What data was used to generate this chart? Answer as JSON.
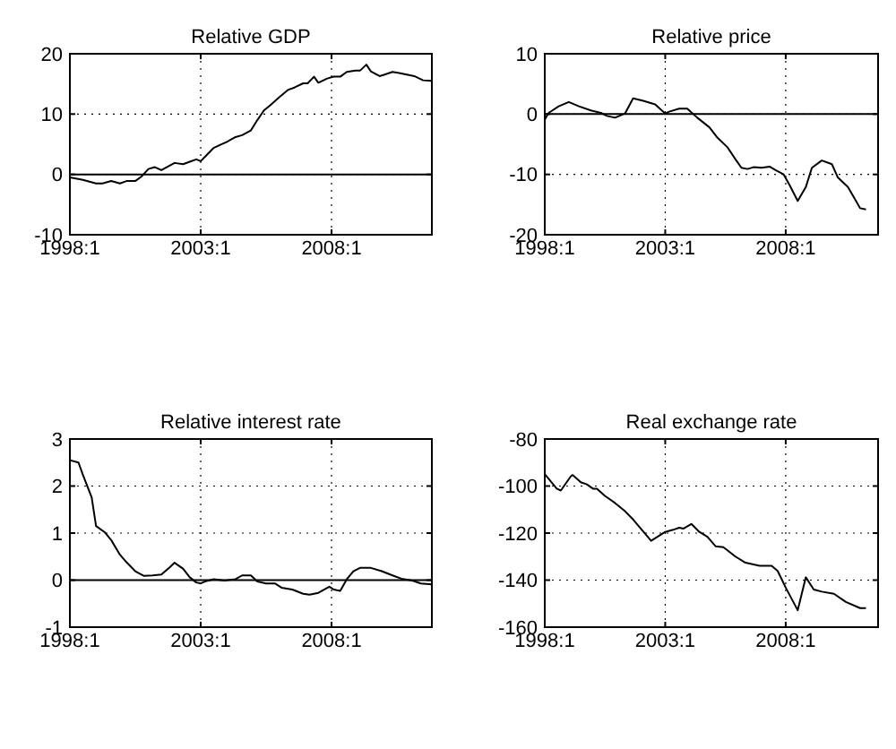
{
  "chart_data": [
    {
      "type": "line",
      "title": "Relative GDP",
      "xlim": [
        "1998-01",
        "2011-11"
      ],
      "ylim": [
        -10,
        20
      ],
      "xticks": [
        {
          "value": "1998-01",
          "label": "1998:1"
        },
        {
          "value": "2003-01",
          "label": "2003:1"
        },
        {
          "value": "2008-01",
          "label": "2008:1"
        }
      ],
      "yticks": [
        -10,
        0,
        10,
        20
      ],
      "grid": true,
      "ref_lines": [
        {
          "axis": "y",
          "value": 0,
          "color": "#000000"
        }
      ],
      "series": [
        {
          "color": "#000000",
          "x": [
            "1998-01",
            "1998-07",
            "1999-01",
            "1999-04",
            "1999-08",
            "1999-12",
            "2000-03",
            "2000-07",
            "2000-10",
            "2001-01",
            "2001-04",
            "2001-07",
            "2001-10",
            "2002-01",
            "2002-05",
            "2002-08",
            "2002-11",
            "2003-01",
            "2003-04",
            "2003-07",
            "2003-10",
            "2004-01",
            "2004-05",
            "2004-08",
            "2004-12",
            "2005-03",
            "2005-06",
            "2005-09",
            "2006-01",
            "2006-05",
            "2006-08",
            "2006-12",
            "2007-02",
            "2007-05",
            "2007-07",
            "2007-11",
            "2008-02",
            "2008-05",
            "2008-08",
            "2008-12",
            "2009-02",
            "2009-05",
            "2009-07",
            "2009-11",
            "2010-01",
            "2010-05",
            "2010-08",
            "2010-12",
            "2011-03",
            "2011-07",
            "2011-11"
          ],
          "values": [
            -0.5,
            -0.9,
            -1.5,
            -1.5,
            -1.1,
            -1.5,
            -1.1,
            -1.1,
            -0.3,
            0.9,
            1.2,
            0.7,
            1.3,
            1.9,
            1.7,
            2.1,
            2.5,
            2.2,
            3.3,
            4.4,
            4.9,
            5.4,
            6.2,
            6.5,
            7.3,
            9.0,
            10.6,
            11.5,
            12.8,
            14.0,
            14.4,
            15.1,
            15.1,
            16.2,
            15.2,
            15.9,
            16.2,
            16.2,
            17.0,
            17.2,
            17.2,
            18.2,
            17.1,
            16.3,
            16.5,
            17.0,
            16.8,
            16.5,
            16.3,
            15.6,
            15.5
          ]
        }
      ]
    },
    {
      "type": "line",
      "title": "Relative price",
      "xlim": [
        "1998-01",
        "2011-11"
      ],
      "ylim": [
        -20,
        10
      ],
      "xticks": [
        {
          "value": "1998-01",
          "label": "1998:1"
        },
        {
          "value": "2003-01",
          "label": "2003:1"
        },
        {
          "value": "2008-01",
          "label": "2008:1"
        }
      ],
      "yticks": [
        -20,
        -10,
        0,
        10
      ],
      "grid": true,
      "ref_lines": [
        {
          "axis": "y",
          "value": 0,
          "color": "#000000"
        }
      ],
      "series": [
        {
          "color": "#000000",
          "x": [
            "1998-01",
            "1998-03",
            "1998-08",
            "1999-01",
            "1999-06",
            "1999-12",
            "2000-05",
            "2000-08",
            "2000-12",
            "2001-05",
            "2001-09",
            "2002-02",
            "2002-08",
            "2003-01",
            "2003-03",
            "2003-08",
            "2003-12",
            "2004-05",
            "2004-11",
            "2005-03",
            "2005-08",
            "2005-12",
            "2006-03",
            "2006-06",
            "2006-09",
            "2007-01",
            "2007-05",
            "2007-08",
            "2007-12",
            "2008-03",
            "2008-07",
            "2008-11",
            "2009-02",
            "2009-07",
            "2009-12",
            "2010-03",
            "2010-08",
            "2010-12",
            "2011-02",
            "2011-05"
          ],
          "values": [
            -0.9,
            0.2,
            1.3,
            2.0,
            1.3,
            0.6,
            0.2,
            -0.3,
            -0.6,
            0.1,
            2.6,
            2.2,
            1.6,
            0.1,
            0.4,
            0.9,
            0.9,
            -0.6,
            -2.2,
            -3.9,
            -5.5,
            -7.5,
            -8.9,
            -9.1,
            -8.8,
            -8.9,
            -8.7,
            -9.3,
            -10.0,
            -11.8,
            -14.4,
            -12.1,
            -8.9,
            -7.7,
            -8.3,
            -10.5,
            -12.1,
            -14.4,
            -15.6,
            -15.8
          ]
        }
      ]
    },
    {
      "type": "line",
      "title": "Relative interest rate",
      "xlim": [
        "1998-01",
        "2011-11"
      ],
      "ylim": [
        -1,
        3
      ],
      "xticks": [
        {
          "value": "1998-01",
          "label": "1998:1"
        },
        {
          "value": "2003-01",
          "label": "2003:1"
        },
        {
          "value": "2008-01",
          "label": "2008:1"
        }
      ],
      "yticks": [
        -1,
        0,
        1,
        2,
        3
      ],
      "grid": true,
      "ref_lines": [
        {
          "axis": "y",
          "value": 0,
          "color": "#000000"
        }
      ],
      "series": [
        {
          "color": "#000000",
          "x": [
            "1998-01",
            "1998-05",
            "1998-07",
            "1998-11",
            "1999-01",
            "1999-05",
            "1999-08",
            "1999-12",
            "2000-03",
            "2000-07",
            "2000-11",
            "2001-03",
            "2001-07",
            "2001-11",
            "2002-01",
            "2002-05",
            "2002-08",
            "2002-11",
            "2003-01",
            "2003-03",
            "2003-07",
            "2003-12",
            "2004-05",
            "2004-08",
            "2004-12",
            "2005-03",
            "2005-07",
            "2005-11",
            "2006-02",
            "2006-07",
            "2006-12",
            "2007-03",
            "2007-07",
            "2007-12",
            "2008-02",
            "2008-05",
            "2008-08",
            "2008-11",
            "2009-02",
            "2009-07",
            "2009-12",
            "2010-05",
            "2010-09",
            "2011-02",
            "2011-06",
            "2011-11"
          ],
          "values": [
            2.55,
            2.5,
            2.24,
            1.76,
            1.15,
            1.02,
            0.85,
            0.54,
            0.38,
            0.19,
            0.09,
            0.1,
            0.12,
            0.28,
            0.37,
            0.24,
            0.06,
            -0.05,
            -0.07,
            -0.03,
            0.02,
            -0.01,
            0.02,
            0.1,
            0.1,
            -0.03,
            -0.07,
            -0.07,
            -0.16,
            -0.2,
            -0.29,
            -0.31,
            -0.27,
            -0.14,
            -0.2,
            -0.23,
            0.02,
            0.19,
            0.26,
            0.26,
            0.19,
            0.1,
            0.03,
            -0.01,
            -0.07,
            -0.09
          ]
        }
      ]
    },
    {
      "type": "line",
      "title": "Real exchange rate",
      "xlim": [
        "1998-01",
        "2011-11"
      ],
      "ylim": [
        -160,
        -80
      ],
      "xticks": [
        {
          "value": "1998-01",
          "label": "1998:1"
        },
        {
          "value": "2003-01",
          "label": "2003:1"
        },
        {
          "value": "2008-01",
          "label": "2008:1"
        }
      ],
      "yticks": [
        -160,
        -140,
        -120,
        -100,
        -80
      ],
      "grid": true,
      "series": [
        {
          "color": "#000000",
          "x": [
            "1998-01",
            "1998-07",
            "1998-09",
            "1999-02",
            "1999-03",
            "1999-07",
            "1999-10",
            "2000-01",
            "2000-03",
            "2000-07",
            "2000-12",
            "2001-05",
            "2001-09",
            "2002-06",
            "2003-01",
            "2003-05",
            "2003-08",
            "2003-10",
            "2004-02",
            "2004-06",
            "2004-10",
            "2005-02",
            "2005-06",
            "2005-12",
            "2006-05",
            "2006-12",
            "2007-06",
            "2007-09",
            "2008-01",
            "2008-07",
            "2008-11",
            "2009-03",
            "2009-07",
            "2010-01",
            "2010-07",
            "2011-02",
            "2011-05"
          ],
          "values": [
            -94.9,
            -101.1,
            -101.9,
            -95.8,
            -95.3,
            -98.4,
            -99.3,
            -101.1,
            -101.1,
            -104.2,
            -107.2,
            -110.7,
            -114.2,
            -123.3,
            -119.5,
            -118.6,
            -117.7,
            -118.1,
            -116.1,
            -119.5,
            -121.6,
            -125.6,
            -126.0,
            -130.0,
            -132.6,
            -133.9,
            -133.9,
            -136.1,
            -143.2,
            -152.8,
            -138.8,
            -144.0,
            -144.9,
            -145.8,
            -149.3,
            -151.9,
            -151.9
          ]
        }
      ]
    }
  ]
}
